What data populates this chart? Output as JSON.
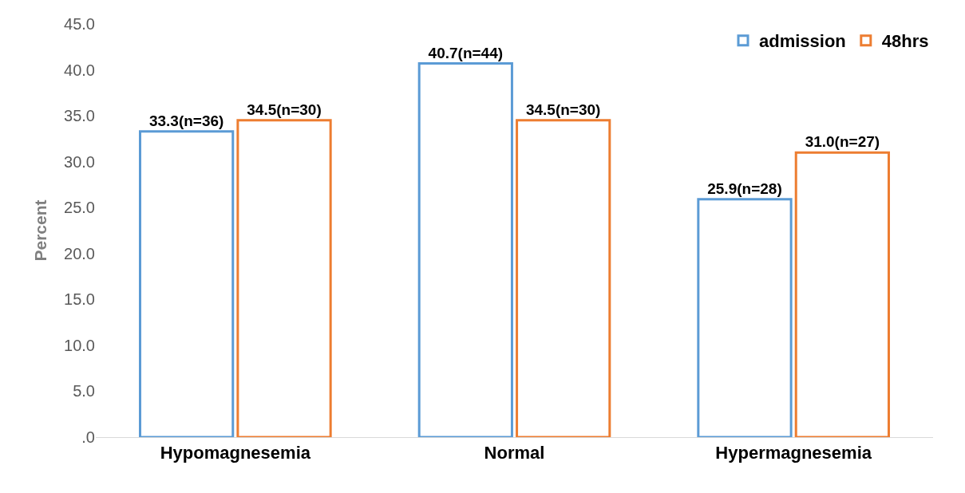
{
  "chart_data": {
    "type": "bar",
    "ylabel": "Percent",
    "categories": [
      "Hypomagnesemia",
      "Normal",
      "Hypermagnesemia"
    ],
    "series": [
      {
        "name": "admission",
        "color": "#5b9bd5",
        "values": [
          33.3,
          40.7,
          25.9
        ],
        "value_labels": [
          "33.3(n=36)",
          "40.7(n=44)",
          "25.9(n=28)"
        ]
      },
      {
        "name": "48hrs",
        "color": "#ed7d31",
        "values": [
          34.5,
          34.5,
          31.0
        ],
        "value_labels": [
          "34.5(n=30)",
          "34.5(n=30)",
          "31.0(n=27)"
        ]
      }
    ],
    "ylim": [
      0,
      45
    ],
    "yticks": [
      {
        "value": 0,
        "label": ".0"
      },
      {
        "value": 5,
        "label": "5.0"
      },
      {
        "value": 10,
        "label": "10.0"
      },
      {
        "value": 15,
        "label": "15.0"
      },
      {
        "value": 20,
        "label": "20.0"
      },
      {
        "value": 25,
        "label": "25.0"
      },
      {
        "value": 30,
        "label": "30.0"
      },
      {
        "value": 35,
        "label": "35.0"
      },
      {
        "value": 40,
        "label": "40.0"
      },
      {
        "value": 45,
        "label": "45.0"
      }
    ],
    "legend": "top right"
  }
}
